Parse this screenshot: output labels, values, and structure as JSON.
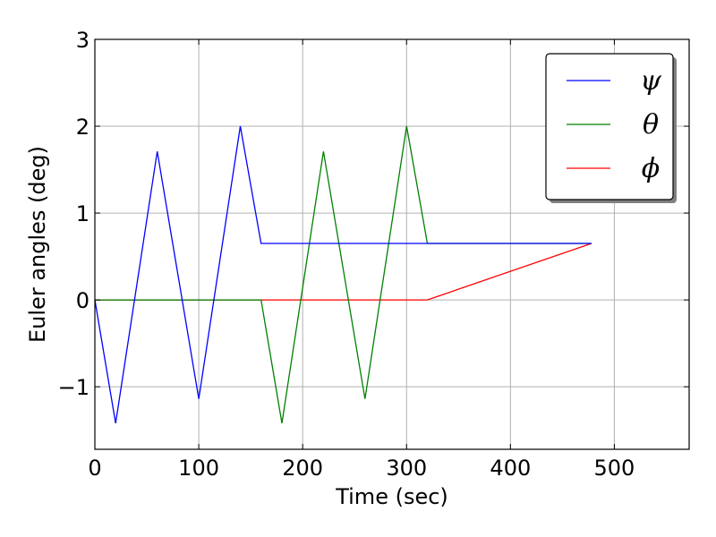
{
  "chart_data": {
    "type": "line",
    "xlabel": "Time (sec)",
    "ylabel": "Euler angles (deg)",
    "xlim": [
      0,
      572
    ],
    "ylim": [
      -1.72,
      3
    ],
    "x_ticks": [
      0,
      100,
      200,
      300,
      400,
      500
    ],
    "x_tick_labels": [
      "0",
      "100",
      "200",
      "300",
      "400",
      "500"
    ],
    "y_ticks": [
      -1,
      0,
      1,
      2,
      3
    ],
    "y_tick_labels": [
      "−1",
      "0",
      "1",
      "2",
      "3"
    ],
    "grid": true,
    "legend_position": "top-right",
    "series": [
      {
        "name": "ψ",
        "color": "#0000ff",
        "x": [
          0,
          20,
          60,
          100,
          140,
          160,
          320,
          478
        ],
        "y": [
          0,
          -1.42,
          1.71,
          -1.14,
          2.0,
          0.65,
          0.65,
          0.65
        ]
      },
      {
        "name": "θ",
        "color": "#008000",
        "x": [
          0,
          160,
          180,
          220,
          260,
          300,
          320,
          478
        ],
        "y": [
          0,
          0,
          -1.42,
          1.71,
          -1.14,
          2.0,
          0.65,
          0.65
        ]
      },
      {
        "name": "ϕ",
        "color": "#ff0000",
        "x": [
          0,
          320,
          478
        ],
        "y": [
          0,
          0,
          0.65
        ]
      }
    ]
  }
}
